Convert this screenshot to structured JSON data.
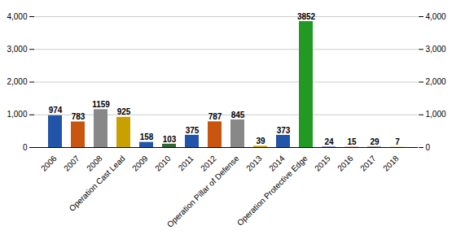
{
  "chart_data": {
    "type": "bar",
    "categories": [
      "2006",
      "2007",
      "2008",
      "Operation Cast Lead",
      "2009",
      "2010",
      "2011",
      "2012",
      "Operation Pillar of Defense",
      "2013",
      "2014",
      "Operation Protective Edge",
      "2015",
      "2016",
      "2017",
      "2018"
    ],
    "values": [
      974,
      783,
      1159,
      925,
      158,
      103,
      375,
      787,
      845,
      39,
      373,
      3852,
      24,
      15,
      29,
      7
    ],
    "colors": [
      "#2255aa",
      "#c85510",
      "#888888",
      "#c8a000",
      "#2255aa",
      "#336633",
      "#2255aa",
      "#c85510",
      "#888888",
      "#c8a000",
      "#2255aa",
      "#229922",
      "#8888bb",
      "#cc8888",
      "#aaaaaa",
      "#c8a000"
    ],
    "ylim": [
      0,
      4000
    ],
    "yticks": [
      0,
      1000,
      2000,
      3000,
      4000
    ],
    "y2lim": [
      0,
      4000
    ],
    "y2ticks": [
      0,
      1000,
      2000,
      3000,
      4000
    ],
    "grid": true,
    "data_labels": true
  }
}
